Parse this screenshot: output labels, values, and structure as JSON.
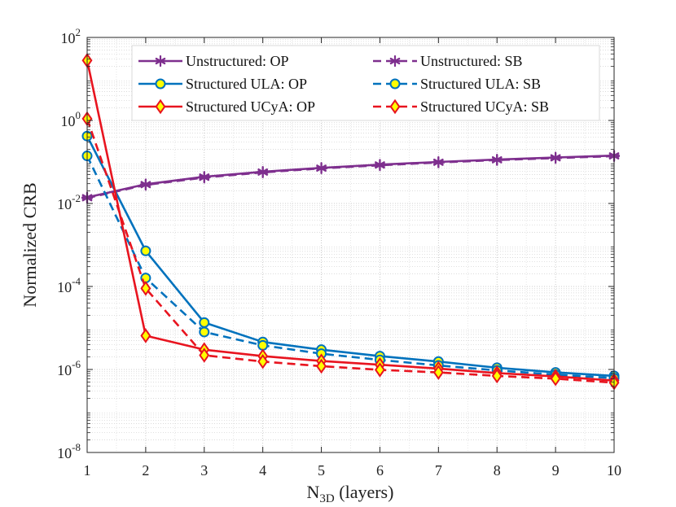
{
  "chart_data": {
    "type": "line",
    "xlabel": "N",
    "xlabel_sub": "3D",
    "xlabel_suffix": " (layers)",
    "ylabel": "Normalized CRB",
    "yscale": "log",
    "xlim": [
      1,
      10
    ],
    "ylim": [
      1e-08,
      100
    ],
    "x_ticks": [
      1,
      2,
      3,
      4,
      5,
      6,
      7,
      8,
      9,
      10
    ],
    "y_ticks": [
      {
        "base": "10",
        "exp": "-8",
        "value": 1e-08
      },
      {
        "base": "10",
        "exp": "-6",
        "value": 1e-06
      },
      {
        "base": "10",
        "exp": "-4",
        "value": 0.0001
      },
      {
        "base": "10",
        "exp": "-2",
        "value": 0.01
      },
      {
        "base": "10",
        "exp": "0",
        "value": 1
      },
      {
        "base": "10",
        "exp": "2",
        "value": 100
      }
    ],
    "grid": "major-and-minor",
    "legend_position": "top",
    "x": [
      1,
      2,
      3,
      4,
      5,
      6,
      7,
      8,
      9,
      10
    ],
    "series": [
      {
        "name": "Unstructured: OP",
        "color": "#7E2F8E",
        "dash": "solid",
        "marker": "asterisk",
        "values": [
          0.014,
          0.029,
          0.044,
          0.058,
          0.072,
          0.086,
          0.1,
          0.114,
          0.128,
          0.142
        ]
      },
      {
        "name": "Unstructured: SB",
        "color": "#7E2F8E",
        "dash": "dashed",
        "marker": "asterisk",
        "values": [
          0.0135,
          0.028,
          0.042,
          0.056,
          0.07,
          0.083,
          0.097,
          0.111,
          0.124,
          0.138
        ]
      },
      {
        "name": "Structured ULA: OP",
        "color": "#0072BD",
        "dash": "solid",
        "marker": "circle",
        "values": [
          0.42,
          0.00072,
          1.35e-05,
          4.6e-06,
          3e-06,
          2.1e-06,
          1.55e-06,
          1.1e-06,
          8.5e-07,
          7e-07
        ]
      },
      {
        "name": "Structured ULA: SB",
        "color": "#0072BD",
        "dash": "dashed",
        "marker": "circle",
        "values": [
          0.14,
          0.00016,
          8e-06,
          3.8e-06,
          2.4e-06,
          1.7e-06,
          1.25e-06,
          9.5e-07,
          7.5e-07,
          6.2e-07
        ]
      },
      {
        "name": "Structured UCyA: OP",
        "color": "#E8141F",
        "dash": "solid",
        "marker": "diamond",
        "values": [
          28,
          6.5e-06,
          3e-06,
          2.1e-06,
          1.6e-06,
          1.3e-06,
          1.05e-06,
          8.2e-07,
          6.8e-07,
          5.4e-07
        ]
      },
      {
        "name": "Structured UCyA: SB",
        "color": "#E8141F",
        "dash": "dashed",
        "marker": "diamond",
        "values": [
          1.1,
          9e-05,
          2.2e-06,
          1.55e-06,
          1.2e-06,
          9.8e-07,
          8.5e-07,
          7e-07,
          6e-07,
          4.8e-07
        ]
      }
    ]
  }
}
